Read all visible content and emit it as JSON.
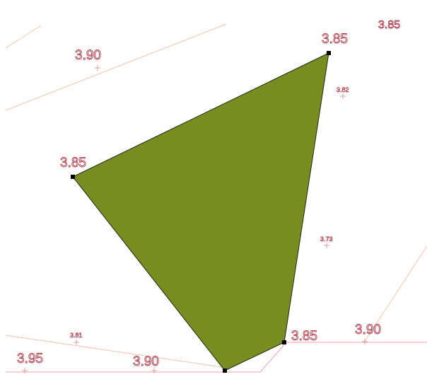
{
  "map": {
    "background": "#ffffff",
    "polygon_color": "#788c22",
    "contour_color": "#f6c3ac",
    "label_color": "#b03a4a",
    "elevation_labels": [
      {
        "id": "lbl-390-topleft",
        "text": "3.90"
      },
      {
        "id": "lbl-385-top",
        "text": "3.85"
      },
      {
        "id": "lbl-385-left",
        "text": "3.85"
      },
      {
        "id": "lbl-385-bottomright",
        "text": "3.85"
      },
      {
        "id": "lbl-390-right",
        "text": "3.90"
      },
      {
        "id": "lbl-395-bottomleft",
        "text": "3.95"
      },
      {
        "id": "lbl-390-bottom",
        "text": "3.90"
      }
    ],
    "spot_heights": [
      {
        "id": "spot-382",
        "text": "3.82"
      },
      {
        "id": "spot-373",
        "text": "3.73"
      },
      {
        "id": "spot-381",
        "text": "3.81"
      }
    ]
  }
}
